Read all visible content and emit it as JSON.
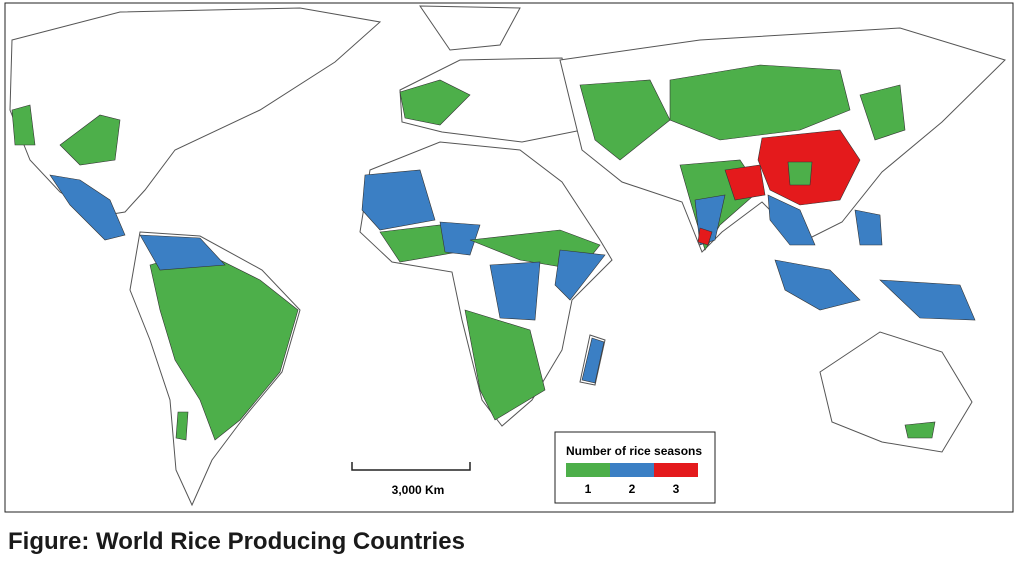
{
  "map": {
    "scale_bar": "3,000 Km",
    "legend": {
      "title": "Number of rice seasons",
      "items": [
        {
          "label": "1",
          "color": "#4daf4a"
        },
        {
          "label": "2",
          "color": "#3b7fc4"
        },
        {
          "label": "3",
          "color": "#e41a1c"
        }
      ]
    }
  },
  "caption": "Figure: World Rice Producing Countries"
}
